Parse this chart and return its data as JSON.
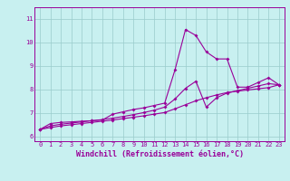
{
  "xlabel": "Windchill (Refroidissement éolien,°C)",
  "bg_color": "#c8f0f0",
  "line_color": "#990099",
  "grid_color": "#99cccc",
  "xlim": [
    -0.5,
    23.5
  ],
  "ylim": [
    5.8,
    11.5
  ],
  "xticks": [
    0,
    1,
    2,
    3,
    4,
    5,
    6,
    7,
    8,
    9,
    10,
    11,
    12,
    13,
    14,
    15,
    16,
    17,
    18,
    19,
    20,
    21,
    22,
    23
  ],
  "yticks": [
    6,
    7,
    8,
    9,
    10,
    11
  ],
  "series1_x": [
    0,
    1,
    2,
    3,
    4,
    5,
    6,
    7,
    8,
    9,
    10,
    11,
    12,
    13,
    14,
    15,
    16,
    17,
    18,
    19,
    20,
    21,
    22,
    23
  ],
  "series1_y": [
    6.3,
    6.55,
    6.6,
    6.62,
    6.65,
    6.67,
    6.7,
    6.95,
    7.05,
    7.15,
    7.22,
    7.32,
    7.42,
    8.85,
    10.55,
    10.3,
    9.6,
    9.3,
    9.3,
    8.1,
    8.1,
    8.3,
    8.5,
    8.2
  ],
  "series2_x": [
    0,
    1,
    2,
    3,
    4,
    5,
    6,
    7,
    8,
    9,
    10,
    11,
    12,
    13,
    14,
    15,
    16,
    17,
    18,
    19,
    20,
    21,
    22,
    23
  ],
  "series2_y": [
    6.3,
    6.45,
    6.52,
    6.57,
    6.62,
    6.67,
    6.72,
    6.78,
    6.85,
    6.93,
    7.02,
    7.12,
    7.25,
    7.6,
    8.05,
    8.35,
    7.25,
    7.65,
    7.85,
    7.95,
    8.05,
    8.15,
    8.25,
    8.2
  ],
  "series3_x": [
    0,
    1,
    2,
    3,
    4,
    5,
    6,
    7,
    8,
    9,
    10,
    11,
    12,
    13,
    14,
    15,
    16,
    17,
    18,
    19,
    20,
    21,
    22,
    23
  ],
  "series3_y": [
    6.3,
    6.38,
    6.45,
    6.5,
    6.55,
    6.6,
    6.65,
    6.7,
    6.76,
    6.82,
    6.88,
    6.95,
    7.02,
    7.18,
    7.35,
    7.52,
    7.65,
    7.77,
    7.87,
    7.93,
    7.98,
    8.03,
    8.08,
    8.2
  ],
  "marker": "D",
  "markersize": 2.0,
  "linewidth": 0.8,
  "tick_fontsize": 5.0,
  "label_fontsize": 6.0
}
